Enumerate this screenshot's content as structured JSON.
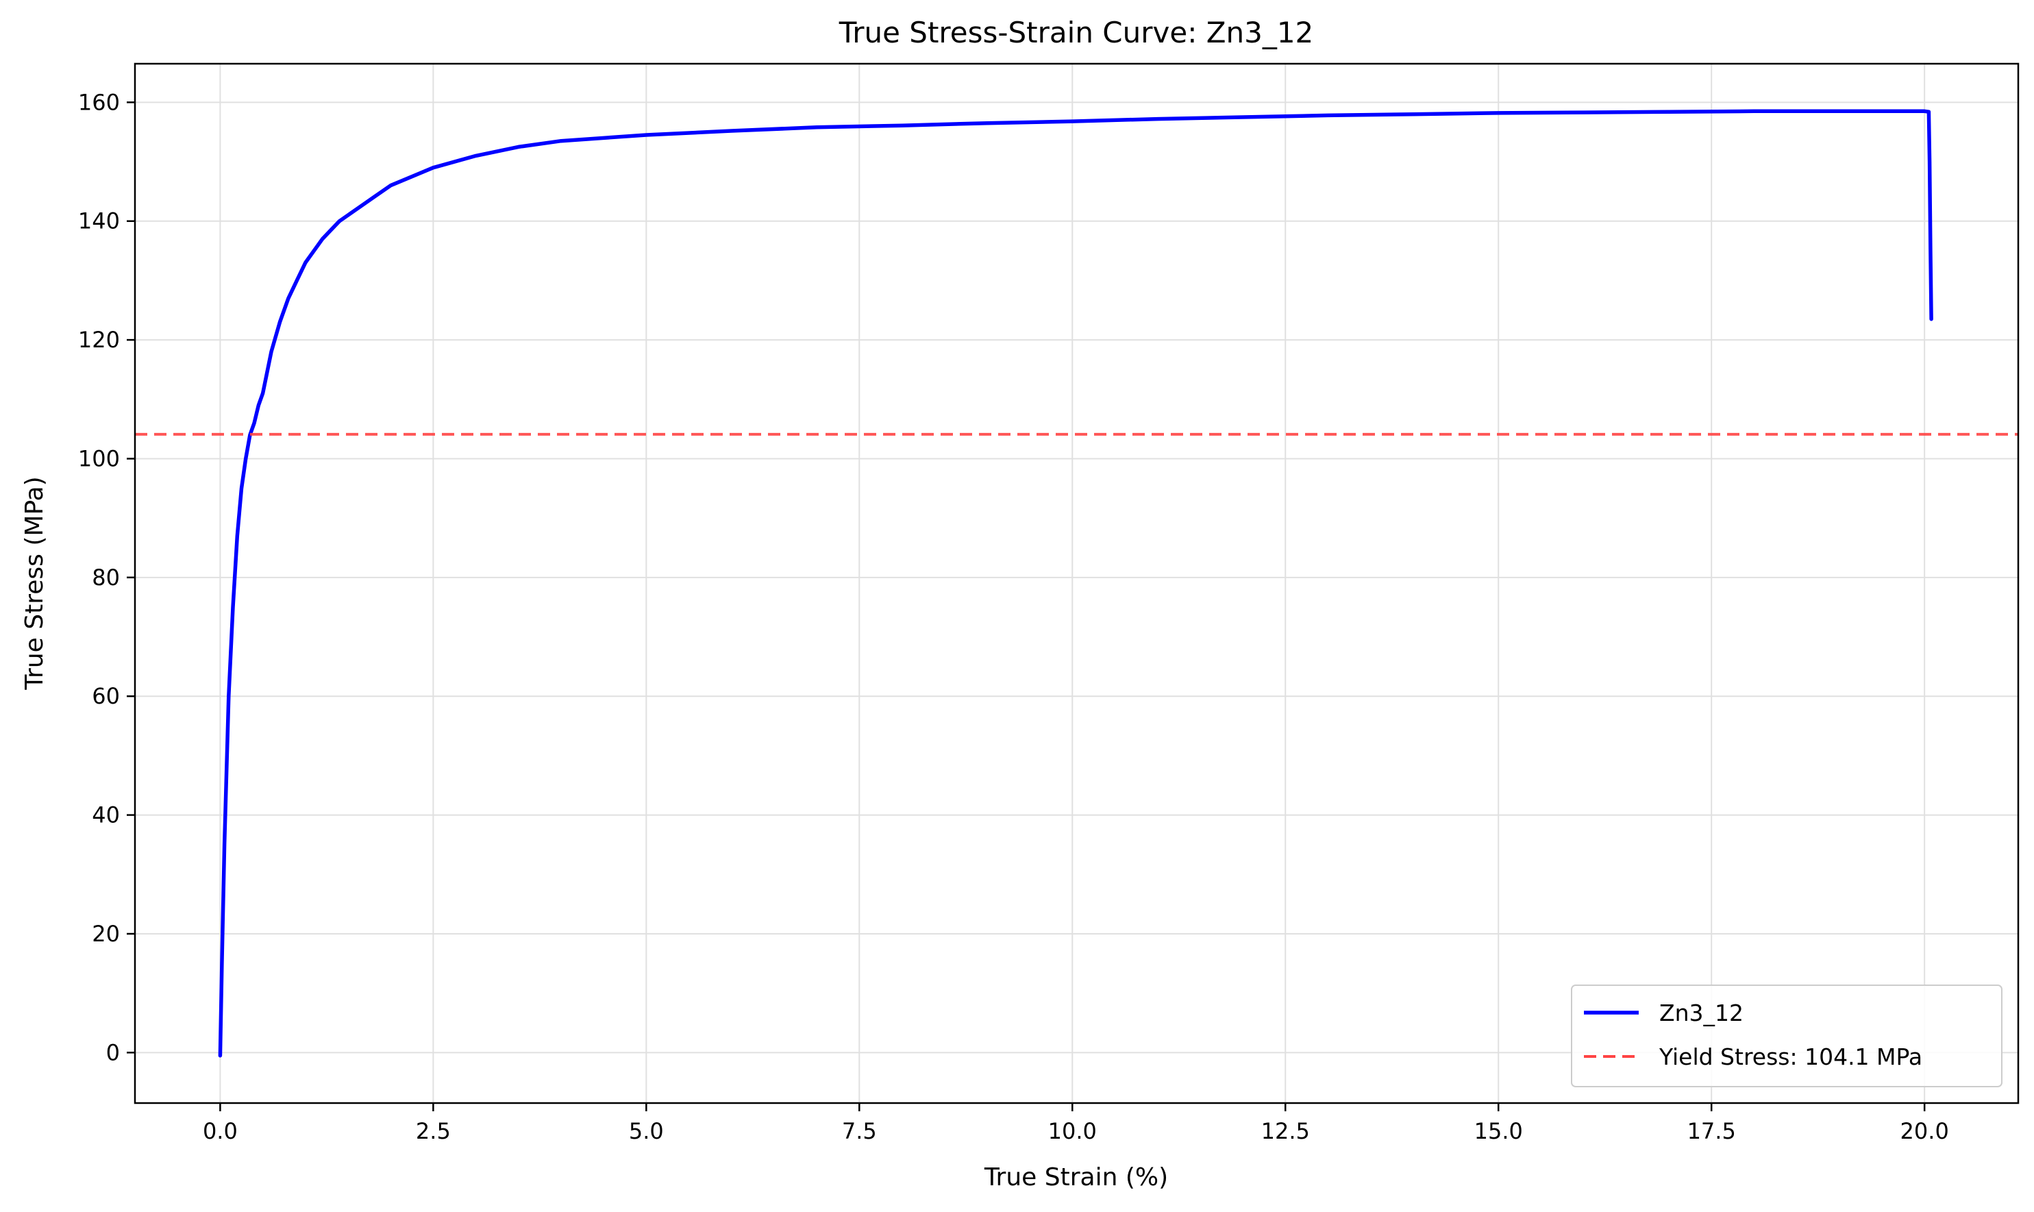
{
  "chart_data": {
    "type": "line",
    "title": "True Stress-Strain Curve: Zn3_12",
    "xlabel": "True Strain (%)",
    "ylabel": "True Stress (MPa)",
    "xlim": [
      -1.0,
      21.1
    ],
    "ylim": [
      -8.5,
      166.5
    ],
    "grid": true,
    "legend_position": "lower-right",
    "x_ticks": [
      {
        "value": 0.0,
        "label": "0.0"
      },
      {
        "value": 2.5,
        "label": "2.5"
      },
      {
        "value": 5.0,
        "label": "5.0"
      },
      {
        "value": 7.5,
        "label": "7.5"
      },
      {
        "value": 10.0,
        "label": "10.0"
      },
      {
        "value": 12.5,
        "label": "12.5"
      },
      {
        "value": 15.0,
        "label": "15.0"
      },
      {
        "value": 17.5,
        "label": "17.5"
      },
      {
        "value": 20.0,
        "label": "20.0"
      }
    ],
    "y_ticks": [
      {
        "value": 0,
        "label": "0"
      },
      {
        "value": 20,
        "label": "20"
      },
      {
        "value": 40,
        "label": "40"
      },
      {
        "value": 60,
        "label": "60"
      },
      {
        "value": 80,
        "label": "80"
      },
      {
        "value": 100,
        "label": "100"
      },
      {
        "value": 120,
        "label": "120"
      },
      {
        "value": 140,
        "label": "140"
      },
      {
        "value": 160,
        "label": "160"
      }
    ],
    "series": [
      {
        "name": "Zn3_12",
        "color": "#0000ff",
        "style": "solid",
        "x": [
          0.0,
          0.02,
          0.05,
          0.1,
          0.15,
          0.2,
          0.25,
          0.3,
          0.35,
          0.4,
          0.45,
          0.5,
          0.6,
          0.7,
          0.8,
          0.9,
          1.0,
          1.2,
          1.4,
          1.6,
          1.8,
          2.0,
          2.5,
          3.0,
          3.5,
          4.0,
          5.0,
          6.0,
          7.0,
          8.0,
          9.0,
          10.0,
          11.0,
          12.0,
          13.0,
          14.0,
          15.0,
          16.0,
          17.0,
          18.0,
          19.0,
          20.0,
          20.05,
          20.06,
          20.07,
          20.08
        ],
        "y": [
          -0.5,
          15,
          35,
          60,
          75,
          87,
          95,
          100,
          104,
          106,
          109,
          111,
          118,
          123,
          127,
          130,
          133,
          137,
          140,
          142,
          144,
          146,
          149,
          151,
          152.5,
          153.5,
          154.5,
          155.2,
          155.8,
          156.1,
          156.5,
          156.8,
          157.2,
          157.5,
          157.8,
          158.0,
          158.2,
          158.3,
          158.4,
          158.5,
          158.5,
          158.5,
          158.4,
          150,
          135,
          123.5
        ]
      },
      {
        "name": "Yield Stress: 104.1 MPa",
        "color": "#ff4444",
        "style": "dashed",
        "y_constant": 104.1
      }
    ]
  }
}
